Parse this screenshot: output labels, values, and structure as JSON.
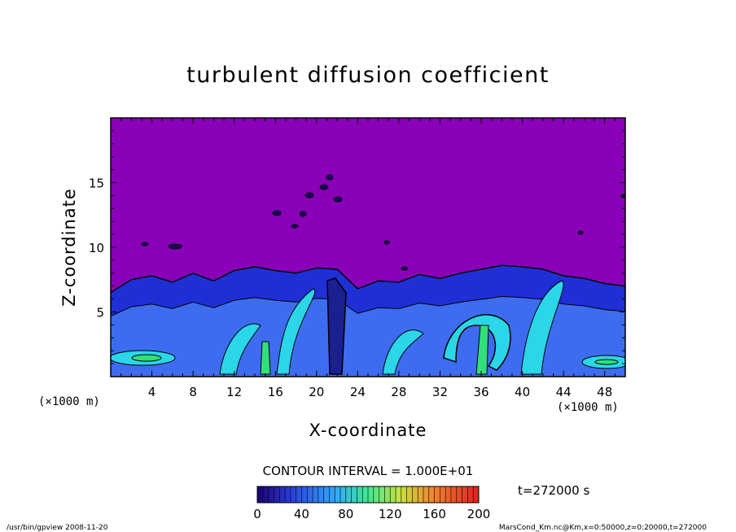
{
  "chart_data": {
    "type": "heatmap",
    "title": "turbulent diffusion coefficient",
    "xlabel": "X-coordinate",
    "ylabel": "Z-coordinate",
    "x_unit": "(×1000 m)",
    "z_unit": "(×1000 m)",
    "xlim": [
      0,
      50
    ],
    "zlim": [
      0,
      20
    ],
    "x_ticks": [
      4,
      8,
      12,
      16,
      20,
      24,
      28,
      32,
      36,
      40,
      44,
      48
    ],
    "z_ticks": [
      5,
      10,
      15
    ],
    "contour_interval": "CONTOUR INTERVAL = 1.000E+01",
    "time_label": "t=272000 s",
    "colorbar": {
      "min": 0,
      "max": 200,
      "ticks": [
        0,
        40,
        80,
        120,
        160,
        200
      ]
    },
    "turbulent_layer_top": [
      {
        "x": 0,
        "z": 6.5
      },
      {
        "x": 2,
        "z": 7.5
      },
      {
        "x": 4,
        "z": 7.8
      },
      {
        "x": 6,
        "z": 7.3
      },
      {
        "x": 8,
        "z": 8.0
      },
      {
        "x": 10,
        "z": 7.4
      },
      {
        "x": 12,
        "z": 8.2
      },
      {
        "x": 14,
        "z": 8.5
      },
      {
        "x": 16,
        "z": 8.2
      },
      {
        "x": 18,
        "z": 8.0
      },
      {
        "x": 20,
        "z": 8.4
      },
      {
        "x": 22,
        "z": 8.3
      },
      {
        "x": 24,
        "z": 6.8
      },
      {
        "x": 26,
        "z": 7.4
      },
      {
        "x": 28,
        "z": 7.3
      },
      {
        "x": 30,
        "z": 7.9
      },
      {
        "x": 32,
        "z": 7.6
      },
      {
        "x": 34,
        "z": 8.0
      },
      {
        "x": 36,
        "z": 8.3
      },
      {
        "x": 38,
        "z": 8.6
      },
      {
        "x": 40,
        "z": 8.5
      },
      {
        "x": 42,
        "z": 8.3
      },
      {
        "x": 44,
        "z": 7.8
      },
      {
        "x": 46,
        "z": 7.6
      },
      {
        "x": 48,
        "z": 7.2
      },
      {
        "x": 50,
        "z": 7.0
      }
    ]
  },
  "footer": {
    "left": "/usr/bin/gpview   2008-11-20",
    "right": "MarsCond_Km.nc@Km,x=0:50000,z=0:20000,t=272000"
  },
  "colors": {
    "background_field": "#8a00b8",
    "low_blue": "#1f2fd6",
    "mid_blue": "#3d6cf0",
    "cyan": "#2ad6e8",
    "green": "#30e07a"
  }
}
